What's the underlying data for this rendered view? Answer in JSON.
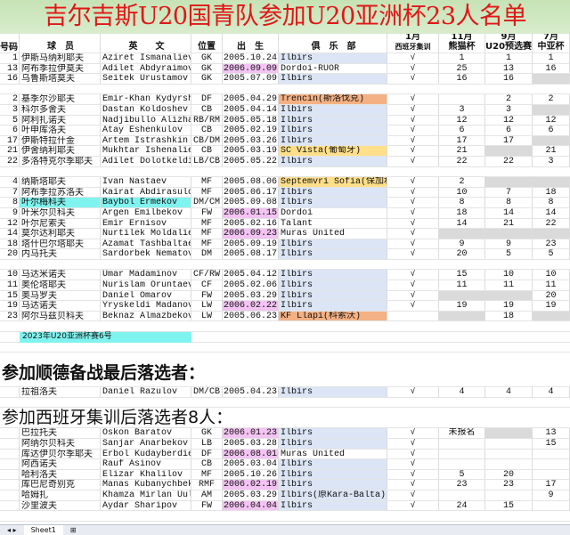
{
  "title": "吉尔吉斯U20国青队参加U20亚洲杯23人名单",
  "colors": {
    "title_text": "#e01818",
    "club_blue": "#dbe5f5",
    "club_orange": "#f4b183",
    "club_yellow": "#ffdf8a",
    "birth_pink": "#f3c3f3",
    "name_cyan": "#7ff3ef",
    "grey": "#dadada"
  },
  "headers": {
    "no": "号码",
    "cn": "球　员",
    "en": "英　　文",
    "pos": "位置",
    "born": "出　生",
    "club": "俱　乐　部",
    "spain": [
      "1月",
      "西班牙集训"
    ],
    "nov": [
      "11月",
      "熊猫杯"
    ],
    "sep": [
      "9月",
      "U20预选赛"
    ],
    "jul": [
      "7月",
      "中亚杯"
    ]
  },
  "groups": [
    [
      {
        "no": "1",
        "cn": "伊斯马纳利耶夫",
        "en": "Aziret Ismanaliev",
        "pos": "GK",
        "born": "2005.10.24",
        "club": "Ilbirs",
        "club_color": "blue",
        "spain": "√",
        "nov": "1",
        "sep": "1",
        "jul": "1"
      },
      {
        "no": "13",
        "cn": "阿布季拉伊莫夫",
        "en": "Adilet Abdyraimov",
        "pos": "GK",
        "born": "2006.09.09",
        "born_pink": true,
        "club": "Dordoi-RUOR",
        "spain": "√",
        "nov": "25",
        "sep": "13",
        "jul": "16"
      },
      {
        "no": "16",
        "cn": "乌鲁斯塔莫夫",
        "en": "Seitek Urustamov",
        "pos": "GK",
        "born": "2005.07.09",
        "club": "Ilbirs",
        "club_color": "blue",
        "spain": "√",
        "nov": "16",
        "sep": "16",
        "jul": "",
        "grey": [
          "jul"
        ]
      }
    ],
    [
      {
        "no": "2",
        "cn": "基季尔沙耶夫",
        "en": "Emir-Khan Kydyrshaev",
        "pos": "DF",
        "born": "2005.04.29",
        "club": "Trencin(斯洛伐克)",
        "club_color": "orange",
        "spain": "√",
        "nov": "",
        "sep": "2",
        "jul": "2"
      },
      {
        "no": "3",
        "cn": "科尔多舍夫",
        "en": "Dastan Koldoshev",
        "pos": "CB",
        "born": "2005.04.14",
        "club": "Ilbirs",
        "club_color": "blue",
        "spain": "√",
        "nov": "3",
        "sep": "3",
        "jul": "",
        "grey": [
          "jul"
        ]
      },
      {
        "no": "5",
        "cn": "阿利扎诺夫",
        "en": "Nadjibullo Alizhanov",
        "pos": "RB/RM",
        "born": "2005.05.18",
        "club": "Ilbirs",
        "club_color": "blue",
        "spain": "√",
        "nov": "12",
        "sep": "12",
        "jul": "12"
      },
      {
        "no": "6",
        "cn": "叶申库洛夫",
        "en": "Atay Eshenkulov",
        "pos": "CB",
        "born": "2005.02.19",
        "club": "Ilbirs",
        "club_color": "blue",
        "spain": "√",
        "nov": "6",
        "sep": "6",
        "jul": "6"
      },
      {
        "no": "17",
        "cn": "伊斯特拉什金",
        "en": "Artem Istrashkin",
        "pos": "CB/DM",
        "born": "2005.03.26",
        "club": "Ilbirs",
        "club_color": "blue",
        "spain": "√",
        "nov": "17",
        "sep": "17",
        "jul": "",
        "grey": [
          "jul"
        ]
      },
      {
        "no": "21",
        "cn": "伊舍纳利耶夫",
        "en": "Mukhtar Ishenaliev",
        "pos": "CB",
        "born": "2005.03.19",
        "club": "SC Vista(葡萄牙)",
        "club_color": "yellow",
        "spain": "√",
        "nov": "21",
        "sep": "",
        "jul": "21",
        "grey": [
          "sep"
        ]
      },
      {
        "no": "22",
        "cn": "多洛特克尔季耶夫",
        "en": "Adilet Dolotkeldiev",
        "pos": "LB/CB",
        "born": "2005.05.22",
        "club": "Ilbirs",
        "club_color": "blue",
        "spain": "√",
        "nov": "22",
        "sep": "22",
        "jul": "3"
      }
    ],
    [
      {
        "no": "4",
        "cn": "纳斯塔耶夫",
        "en": "Ivan Nastaev",
        "pos": "MF",
        "born": "2005.08.06",
        "club": "Septemvri Sofia(保加利亚)",
        "club_color": "yellow",
        "spain": "√",
        "nov": "2",
        "sep": "",
        "jul": "",
        "grey": [
          "sep",
          "jul"
        ]
      },
      {
        "no": "7",
        "cn": "阿布季拉苏洛夫",
        "en": "Kairat Abdirasulov",
        "pos": "MF",
        "born": "2005.06.17",
        "club": "Ilbirs",
        "club_color": "blue",
        "spain": "√",
        "nov": "10",
        "sep": "7",
        "jul": "18"
      },
      {
        "no": "8",
        "cn": "叶尔梅科夫",
        "en": "Baybol Ermekov",
        "pos": "DM/CM",
        "born": "2005.09.08",
        "name_cyan": true,
        "club": "Ilbirs",
        "club_color": "blue",
        "spain": "√",
        "nov": "8",
        "sep": "8",
        "jul": "8"
      },
      {
        "no": "9",
        "cn": "叶米尔贝科夫",
        "en": "Argen Emilbekov",
        "pos": "FW",
        "born": "2006.01.15",
        "born_pink": true,
        "club": "Dordoi",
        "spain": "√",
        "nov": "18",
        "sep": "14",
        "jul": "14"
      },
      {
        "no": "12",
        "cn": "叶尔尼索夫",
        "en": "Emir Ernisov",
        "pos": "MF",
        "born": "2005.02.16",
        "club": "Talant",
        "spain": "√",
        "nov": "14",
        "sep": "21",
        "jul": "22"
      },
      {
        "no": "14",
        "cn": "莫尔达利耶夫",
        "en": "Nurtilek Moldaliev",
        "pos": "MF",
        "born": "2006.09.23",
        "born_pink": true,
        "club": "Muras United",
        "spain": "√",
        "nov": "",
        "sep": "",
        "jul": "",
        "grey": [
          "nov",
          "sep",
          "jul"
        ]
      },
      {
        "no": "18",
        "cn": "塔什巴尔塔耶夫",
        "en": "Azamat Tashbaltaev",
        "pos": "MF",
        "born": "2005.09.19",
        "club": "Ilbirs",
        "club_color": "blue",
        "spain": "√",
        "nov": "9",
        "sep": "9",
        "jul": "23"
      },
      {
        "no": "20",
        "cn": "内马托夫",
        "en": "Sardorbek Nematov",
        "pos": "DM",
        "born": "2005.08.17",
        "club": "Ilbirs",
        "club_color": "blue",
        "spain": "√",
        "nov": "20",
        "sep": "5",
        "jul": "5"
      }
    ],
    [
      {
        "no": "10",
        "cn": "马达米诺夫",
        "en": "Umar Madaminov",
        "pos": "CF/RW",
        "born": "2005.04.12",
        "club": "Ilbirs",
        "club_color": "blue",
        "spain": "√",
        "nov": "15",
        "sep": "10",
        "jul": "10"
      },
      {
        "no": "11",
        "cn": "奥伦塔耶夫",
        "en": "Nurislam Oruntaev",
        "pos": "CF",
        "born": "2005.02.06",
        "club": "Ilbirs",
        "club_color": "blue",
        "spain": "√",
        "nov": "11",
        "sep": "11",
        "jul": "11"
      },
      {
        "no": "15",
        "cn": "奥马罗夫",
        "en": "Daniel Omarov",
        "pos": "FW",
        "born": "2005.03.29",
        "club": "Ilbirs",
        "club_color": "blue",
        "spain": "√",
        "nov": "",
        "sep": "",
        "jul": "20",
        "grey": [
          "nov",
          "sep"
        ]
      },
      {
        "no": "19",
        "cn": "马达诺夫",
        "en": "Yryskeldi Madanov",
        "pos": "LW",
        "born": "2006.02.22",
        "born_pink": true,
        "club": "Ilbirs",
        "club_color": "blue",
        "spain": "√",
        "nov": "19",
        "sep": "19",
        "jul": "19"
      },
      {
        "no": "23",
        "cn": "阿尔马兹贝科夫",
        "en": "Beknaz Almazbekov",
        "pos": "LW",
        "born": "2005.06.23",
        "club": "KF Llapi(科索沃)",
        "club_color": "orange",
        "spain": "",
        "nov": "",
        "sep": "18",
        "jul": "",
        "grey": [
          "nov",
          "jul"
        ]
      }
    ]
  ],
  "note": "2023年U20亚洲杯赛6号",
  "shunde": {
    "heading": "参加顺德备战最后落选者：",
    "players": [
      {
        "no": "",
        "cn": "拉祖洛夫",
        "en": "Daniel Razulov",
        "pos": "DM/CB",
        "born": "2005.04.23",
        "club": "Ilbirs",
        "club_color": "blue",
        "spain": "√",
        "nov": "4",
        "sep": "4",
        "jul": "4"
      }
    ]
  },
  "spain_cut": {
    "heading": "参加西班牙集训后落选者8人：",
    "players": [
      {
        "no": "",
        "cn": "巴拉托夫",
        "en": "Oskon Baratov",
        "pos": "GK",
        "born": "2006.01.23",
        "born_pink": true,
        "club": "Ilbirs",
        "club_color": "blue",
        "spain": "√",
        "nov": "未报名",
        "sep": "",
        "jul": "13",
        "grey": [
          "sep"
        ]
      },
      {
        "no": "",
        "cn": "阿纳尔贝科夫",
        "en": "Sanjar Anarbekov",
        "pos": "LB",
        "born": "2005.03.28",
        "club": "Ilbirs",
        "club_color": "blue",
        "spain": "√",
        "nov": "",
        "sep": "",
        "jul": "15"
      },
      {
        "no": "",
        "cn": "库达伊贝尔季耶夫",
        "en": "Erbol Kudayberdiev",
        "pos": "DF",
        "born": "2006.08.01",
        "born_pink": true,
        "club": "Muras United",
        "spain": "√",
        "nov": "",
        "sep": "",
        "jul": ""
      },
      {
        "no": "",
        "cn": "阿西诺夫",
        "en": "Rauf Asinov",
        "pos": "CB",
        "born": "2005.03.04",
        "club": "Ilbirs",
        "club_color": "blue",
        "spain": "√",
        "nov": "",
        "sep": "",
        "jul": ""
      },
      {
        "no": "",
        "cn": "哈利洛夫",
        "en": "Elizar Khalilov",
        "pos": "MF",
        "born": "2005.10.26",
        "club": "Ilbirs",
        "club_color": "blue",
        "spain": "√",
        "nov": "5",
        "sep": "20",
        "jul": ""
      },
      {
        "no": "",
        "cn": "库巴尼奇别克",
        "en": "Manas Kubanychbek U",
        "pos": "RMF",
        "born": "2006.02.19",
        "born_pink": true,
        "club": "Ilbirs",
        "club_color": "blue",
        "spain": "√",
        "nov": "23",
        "sep": "23",
        "jul": "17"
      },
      {
        "no": "",
        "cn": "哈姆扎",
        "en": "Khamza Mirlan Uulu",
        "pos": "AM",
        "born": "2005.03.29",
        "club": "Ilbirs(原Kara-Balta)",
        "club_color": "blue",
        "spain": "√",
        "nov": "",
        "sep": "",
        "jul": "9"
      },
      {
        "no": "",
        "cn": "沙里波夫",
        "en": "Aydar Sharipov",
        "pos": "FW",
        "born": "2006.04.04",
        "born_pink": true,
        "club": "Ilbirs",
        "club_color": "blue",
        "spain": "√",
        "nov": "24",
        "sep": "15",
        "jul": ""
      }
    ]
  },
  "sheet_tab": "Sheet1"
}
